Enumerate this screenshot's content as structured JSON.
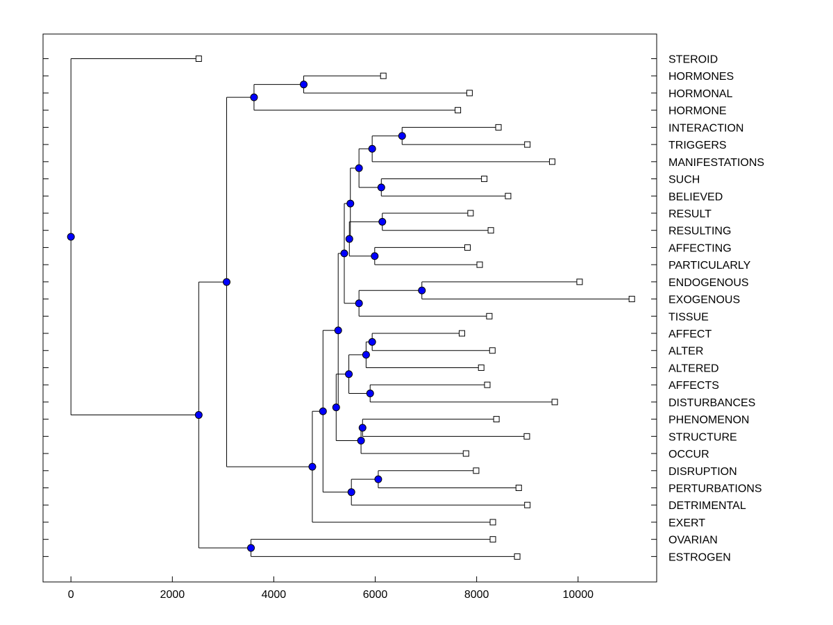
{
  "chart_data": {
    "type": "dendrogram",
    "title": "",
    "xlabel": "",
    "ylabel": "",
    "xlim": [
      -550,
      11550
    ],
    "xticks": [
      0,
      2000,
      4000,
      6000,
      8000,
      10000
    ],
    "grid": false,
    "legend": "none",
    "colors": {
      "node": "#0000ff",
      "line": "#000000",
      "leaf_fill": "#ffffff"
    },
    "leaves": [
      {
        "label": "STEROID",
        "x": 2520
      },
      {
        "label": "HORMONES",
        "x": 6160
      },
      {
        "label": "HORMONAL",
        "x": 7860
      },
      {
        "label": "HORMONE",
        "x": 7630
      },
      {
        "label": "INTERACTION",
        "x": 8430
      },
      {
        "label": "TRIGGERS",
        "x": 9000
      },
      {
        "label": "MANIFESTATIONS",
        "x": 9490
      },
      {
        "label": "SUCH",
        "x": 8150
      },
      {
        "label": "BELIEVED",
        "x": 8620
      },
      {
        "label": "RESULT",
        "x": 7880
      },
      {
        "label": "RESULTING",
        "x": 8280
      },
      {
        "label": "AFFECTING",
        "x": 7820
      },
      {
        "label": "PARTICULARLY",
        "x": 8060
      },
      {
        "label": "ENDOGENOUS",
        "x": 10030
      },
      {
        "label": "EXOGENOUS",
        "x": 11060
      },
      {
        "label": "TISSUE",
        "x": 8250
      },
      {
        "label": "AFFECT",
        "x": 7710
      },
      {
        "label": "ALTER",
        "x": 8310
      },
      {
        "label": "ALTERED",
        "x": 8090
      },
      {
        "label": "AFFECTS",
        "x": 8210
      },
      {
        "label": "DISTURBANCES",
        "x": 9540
      },
      {
        "label": "PHENOMENON",
        "x": 8390
      },
      {
        "label": "STRUCTURE",
        "x": 8990
      },
      {
        "label": "OCCUR",
        "x": 7790
      },
      {
        "label": "DISRUPTION",
        "x": 7990
      },
      {
        "label": "PERTURBATIONS",
        "x": 8830
      },
      {
        "label": "DETRIMENTAL",
        "x": 9000
      },
      {
        "label": "EXERT",
        "x": 8320
      },
      {
        "label": "OVARIAN",
        "x": 8320
      },
      {
        "label": "ESTROGEN",
        "x": 8800
      }
    ],
    "merges": [
      {
        "x": 4590,
        "children": [
          "L1",
          "L2"
        ]
      },
      {
        "x": 3610,
        "children": [
          "M0",
          "L3"
        ]
      },
      {
        "x": 6530,
        "children": [
          "L4",
          "L5"
        ]
      },
      {
        "x": 5940,
        "children": [
          "M2",
          "L6"
        ]
      },
      {
        "x": 6120,
        "children": [
          "L7",
          "L8"
        ]
      },
      {
        "x": 5680,
        "children": [
          "M3",
          "M4"
        ]
      },
      {
        "x": 6140,
        "children": [
          "L9",
          "L10"
        ]
      },
      {
        "x": 5990,
        "children": [
          "L11",
          "L12"
        ]
      },
      {
        "x": 5490,
        "children": [
          "M6",
          "M7"
        ]
      },
      {
        "x": 5510,
        "children": [
          "M5",
          "M8"
        ]
      },
      {
        "x": 6920,
        "children": [
          "L13",
          "L14"
        ]
      },
      {
        "x": 5680,
        "children": [
          "M10",
          "L15"
        ]
      },
      {
        "x": 5390,
        "children": [
          "M9",
          "M11"
        ]
      },
      {
        "x": 5940,
        "children": [
          "L16",
          "L17"
        ]
      },
      {
        "x": 5820,
        "children": [
          "M13",
          "L18"
        ]
      },
      {
        "x": 5900,
        "children": [
          "L19",
          "L20"
        ]
      },
      {
        "x": 5480,
        "children": [
          "M14",
          "M15"
        ]
      },
      {
        "x": 5750,
        "children": [
          "L21",
          "L22"
        ]
      },
      {
        "x": 5720,
        "children": [
          "M17",
          "L23"
        ]
      },
      {
        "x": 5230,
        "children": [
          "M16",
          "M18"
        ]
      },
      {
        "x": 5270,
        "children": [
          "M12",
          "M19"
        ]
      },
      {
        "x": 6060,
        "children": [
          "L24",
          "L25"
        ]
      },
      {
        "x": 5530,
        "children": [
          "M21",
          "L26"
        ]
      },
      {
        "x": 4970,
        "children": [
          "M20",
          "M22"
        ]
      },
      {
        "x": 4760,
        "children": [
          "M23",
          "L27"
        ]
      },
      {
        "x": 3070,
        "children": [
          "M1",
          "M24"
        ]
      },
      {
        "x": 3550,
        "children": [
          "L28",
          "L29"
        ]
      },
      {
        "x": 2520,
        "children": [
          "M25",
          "M26"
        ]
      },
      {
        "x": 0,
        "children": [
          "L0",
          "M27"
        ]
      }
    ]
  }
}
